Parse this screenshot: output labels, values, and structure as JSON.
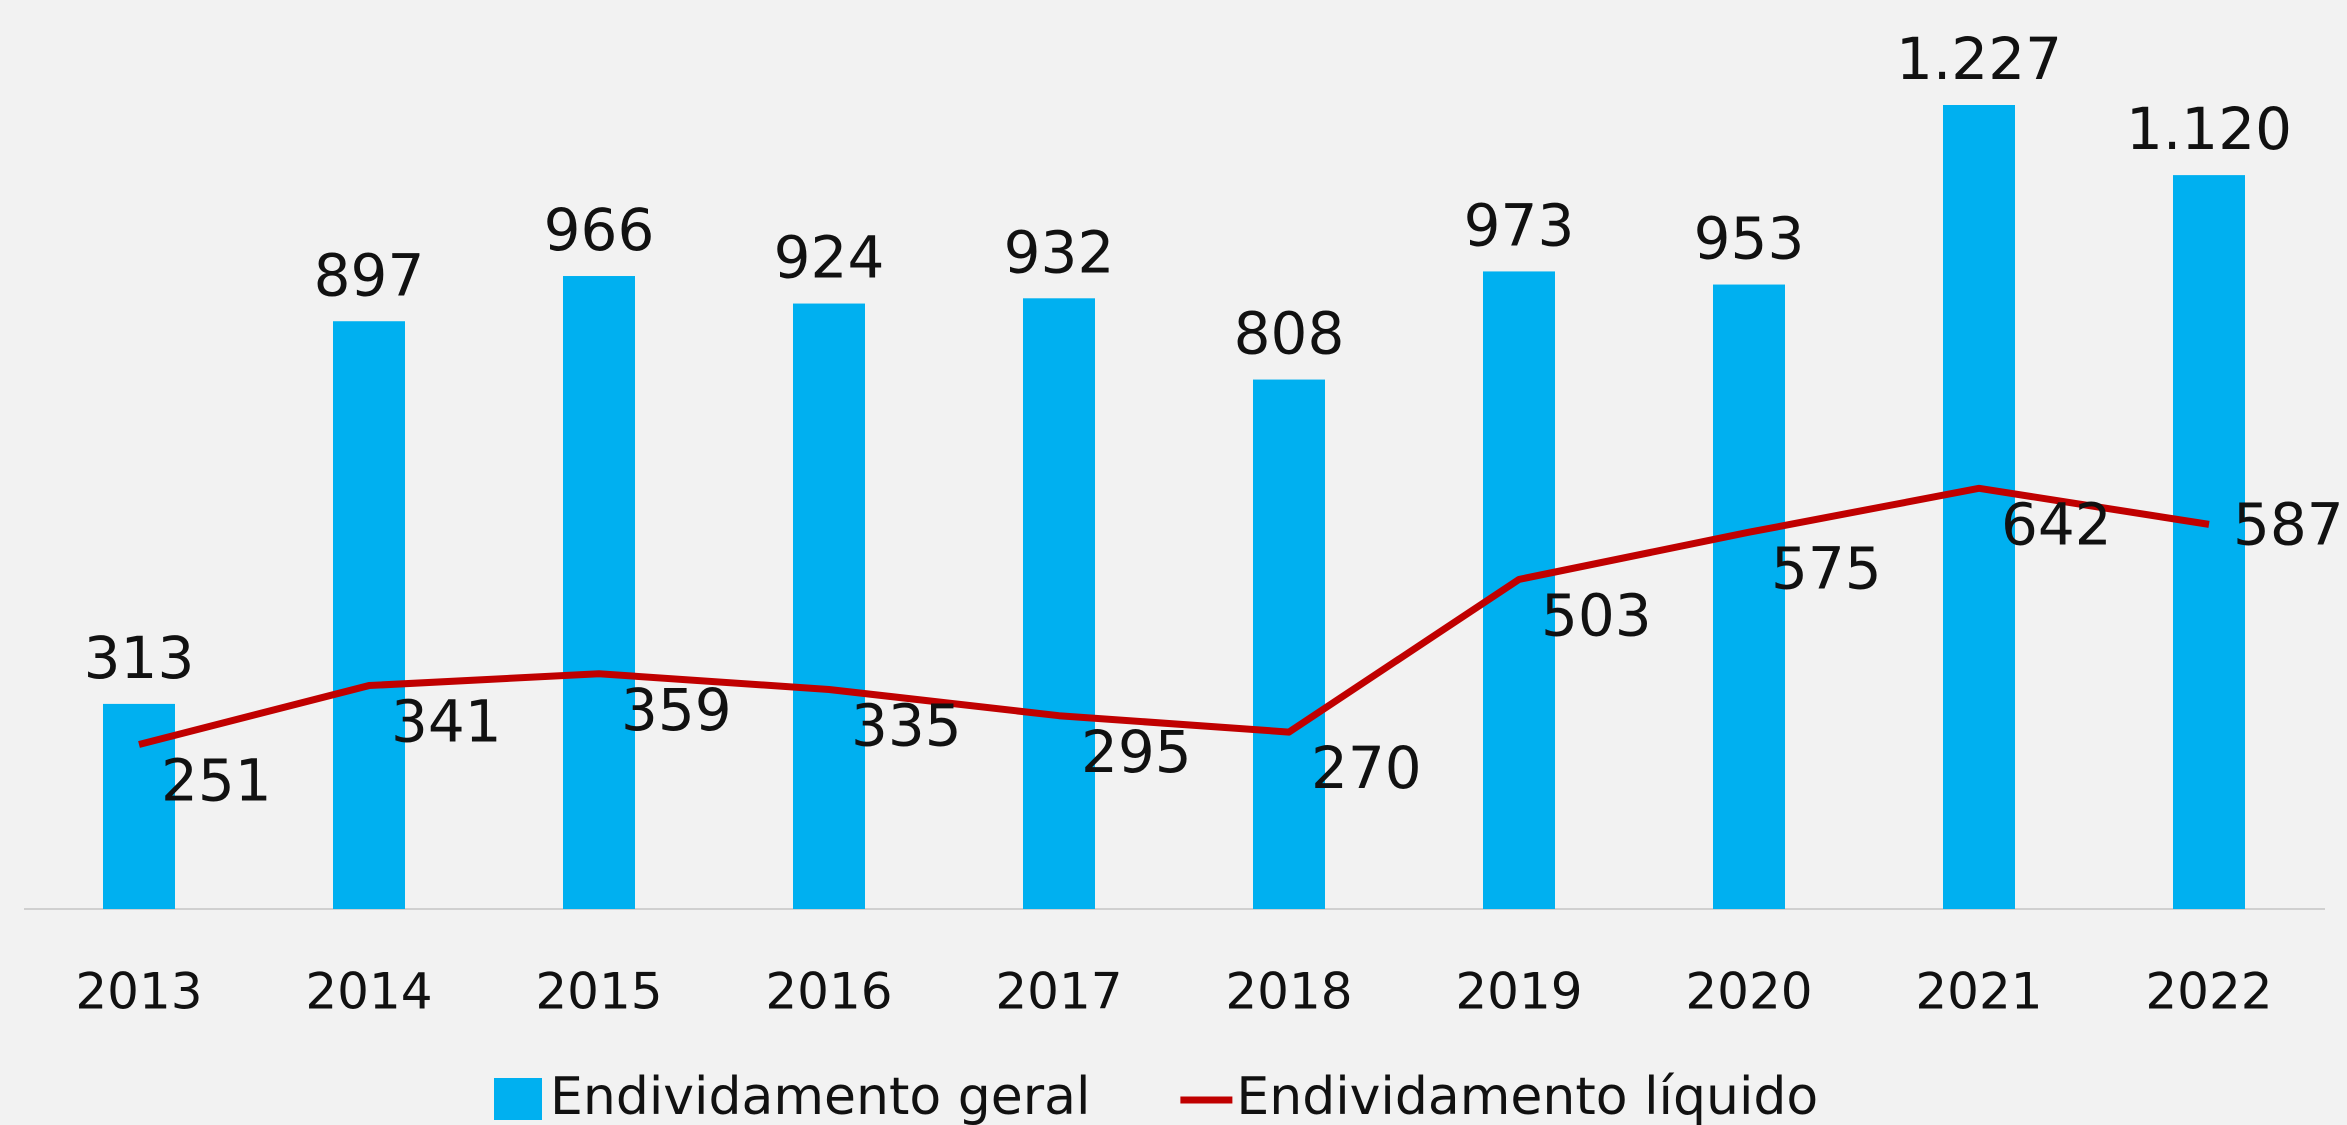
{
  "chart_data": {
    "type": "bar_line",
    "categories": [
      "2013",
      "2014",
      "2015",
      "2016",
      "2017",
      "2018",
      "2019",
      "2020",
      "2021",
      "2022"
    ],
    "series": [
      {
        "name": "Endividamento geral",
        "type": "bar",
        "color": "#00b0f0",
        "values": [
          313,
          897,
          966,
          924,
          932,
          808,
          973,
          953,
          1227,
          1120
        ],
        "value_labels": [
          "313",
          "897",
          "966",
          "924",
          "932",
          "808",
          "973",
          "953",
          "1.227",
          "1.120"
        ]
      },
      {
        "name": "Endividamento líquido",
        "type": "line",
        "color": "#c00000",
        "values": [
          251,
          341,
          359,
          335,
          295,
          270,
          503,
          575,
          642,
          587
        ]
      }
    ],
    "legend": "bottom"
  }
}
